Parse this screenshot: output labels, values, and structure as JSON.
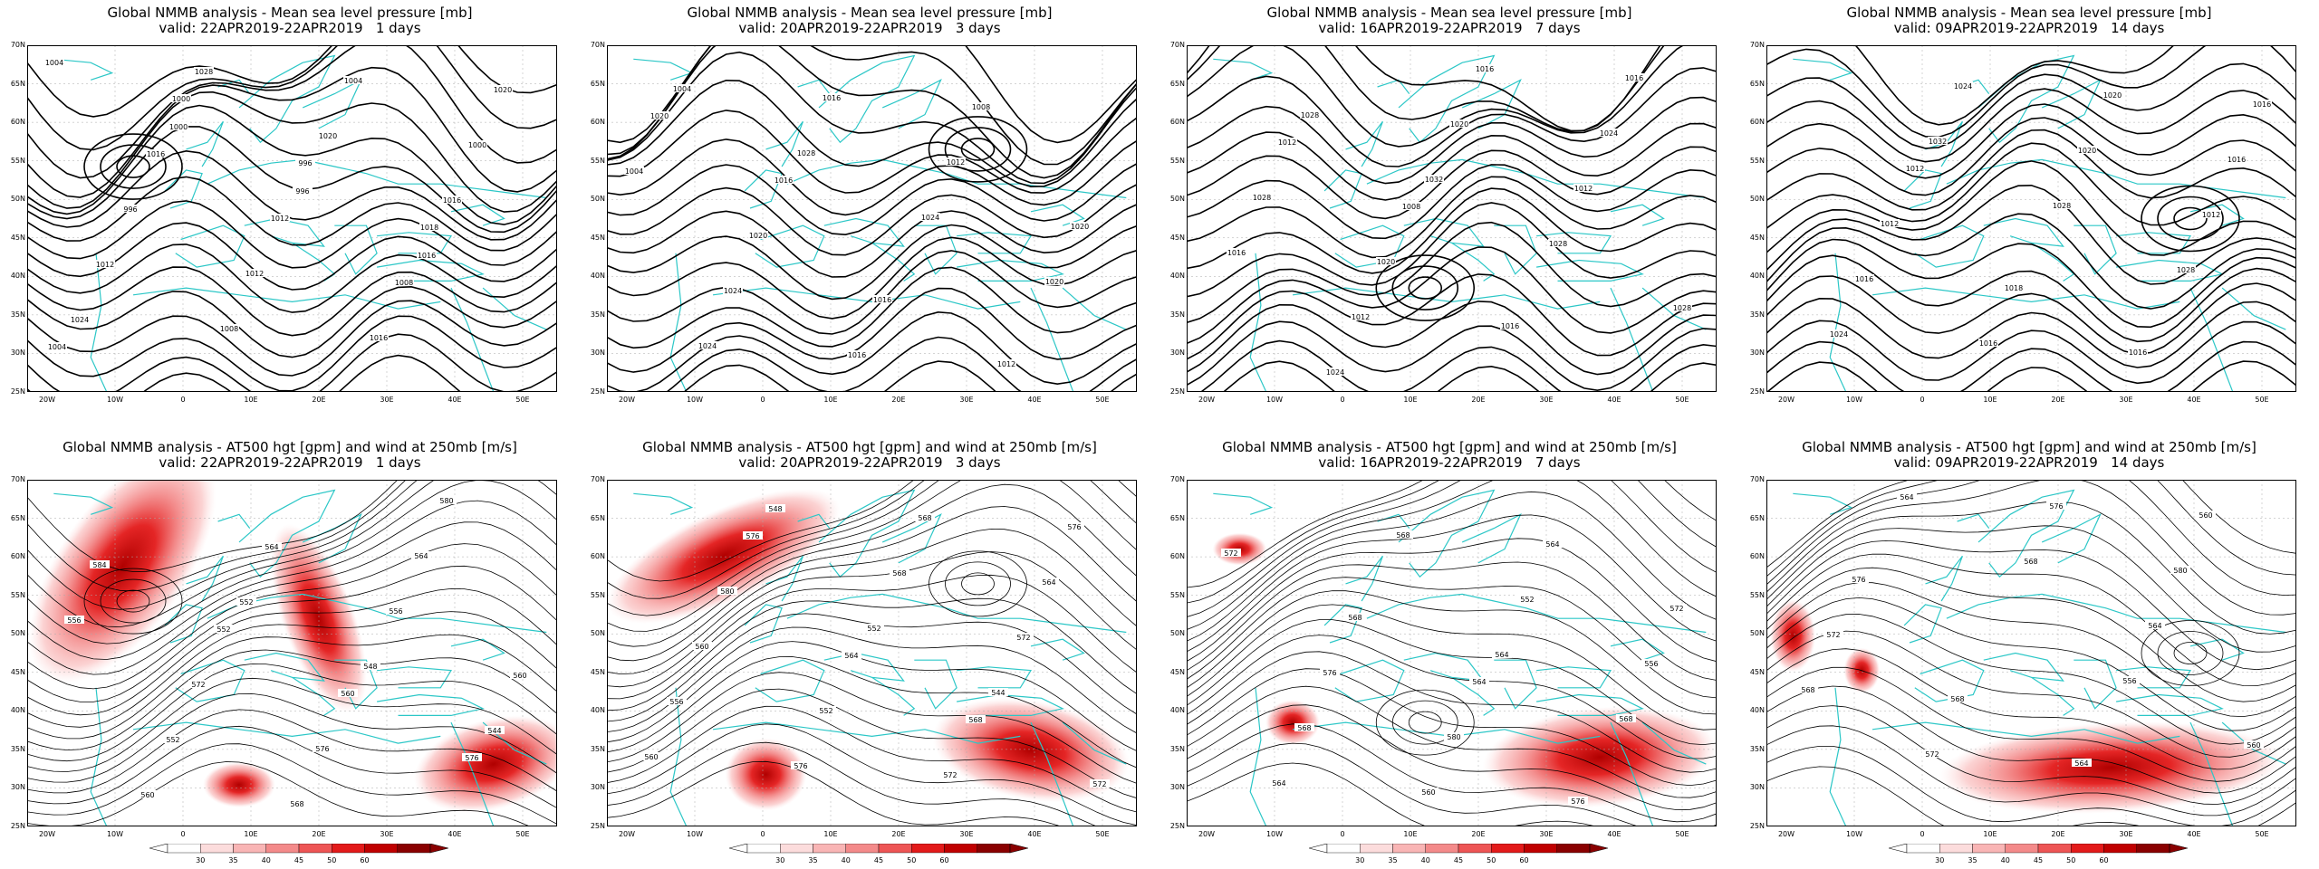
{
  "panels": [
    {
      "row": 0,
      "title": "Global NMMB analysis - Mean sea level pressure [mb]",
      "valid": "valid: 22APR2019-22APR2019   1 days",
      "labels": [
        "1004",
        "1000",
        "996",
        "1016",
        "1024",
        "1028",
        "1020",
        "1016",
        "1012",
        "1008",
        "1004",
        "1000",
        "996",
        "1012",
        "1016",
        "1020",
        "1016",
        "1012",
        "1008",
        "1004",
        "1000",
        "996",
        "1018"
      ]
    },
    {
      "row": 0,
      "title": "Global NMMB analysis - Mean sea level pressure [mb]",
      "valid": "valid: 20APR2019-22APR2019   3 days",
      "labels": [
        "1004",
        "1028",
        "1024",
        "1020",
        "1024",
        "1016",
        "1012",
        "1020",
        "1024",
        "1016",
        "1008",
        "1004",
        "1020",
        "1016",
        "1012",
        "1020",
        "1016"
      ]
    },
    {
      "row": 0,
      "title": "Global NMMB analysis - Mean sea level pressure [mb]",
      "valid": "valid: 16APR2019-22APR2019   7 days",
      "labels": [
        "1028",
        "1032",
        "1028",
        "1028",
        "1024",
        "1020",
        "1012",
        "1016",
        "1012",
        "1016",
        "1024",
        "1028",
        "1020",
        "1016",
        "1016",
        "1012",
        "1008"
      ]
    },
    {
      "row": 0,
      "title": "Global NMMB analysis - Mean sea level pressure [mb]",
      "valid": "valid: 09APR2019-22APR2019   14 days",
      "labels": [
        "1032",
        "1028",
        "1028",
        "1024",
        "1024",
        "1020",
        "1012",
        "1016",
        "1016",
        "1020",
        "1016",
        "1012",
        "1018",
        "1016",
        "1016",
        "1012"
      ]
    },
    {
      "row": 1,
      "title": "Global NMMB analysis - AT500 hgt [gpm] and wind at 250mb [m/s]",
      "valid": "valid: 22APR2019-22APR2019   1 days",
      "labels": [
        "552",
        "548",
        "544",
        "560",
        "564",
        "556",
        "560",
        "552",
        "568",
        "564",
        "556",
        "572",
        "576",
        "580",
        "584",
        "552",
        "560",
        "576"
      ]
    },
    {
      "row": 1,
      "title": "Global NMMB analysis - AT500 hgt [gpm] and wind at 250mb [m/s]",
      "valid": "valid: 20APR2019-22APR2019   3 days",
      "labels": [
        "552",
        "544",
        "560",
        "548",
        "568",
        "572",
        "556",
        "576",
        "568",
        "564",
        "560",
        "552",
        "572",
        "576",
        "580",
        "564",
        "568",
        "572",
        "576"
      ]
    },
    {
      "row": 1,
      "title": "Global NMMB analysis - AT500 hgt [gpm] and wind at 250mb [m/s]",
      "valid": "valid: 16APR2019-22APR2019   7 days",
      "labels": [
        "564",
        "568",
        "564",
        "568",
        "552",
        "556",
        "568",
        "560",
        "564",
        "572",
        "576",
        "580",
        "576",
        "572",
        "568",
        "564"
      ]
    },
    {
      "row": 1,
      "title": "Global NMMB analysis - AT500 hgt [gpm] and wind at 250mb [m/s]",
      "valid": "valid: 09APR2019-22APR2019   14 days",
      "labels": [
        "556",
        "560",
        "564",
        "568",
        "564",
        "568",
        "572",
        "576",
        "580",
        "572",
        "568",
        "564",
        "560",
        "576"
      ]
    }
  ],
  "lat_ticks": [
    "70N",
    "65N",
    "60N",
    "55N",
    "50N",
    "45N",
    "40N",
    "35N",
    "30N",
    "25N"
  ],
  "lon_ticks": [
    "20W",
    "10W",
    "0",
    "10E",
    "20E",
    "30E",
    "40E",
    "50E"
  ],
  "colorbar": {
    "ticks": [
      "30",
      "35",
      "40",
      "45",
      "50",
      "60"
    ],
    "colors": [
      "#ffffff",
      "#fcdcdc",
      "#f9b5b5",
      "#f48a8a",
      "#ee5555",
      "#e31a1a",
      "#c00000",
      "#8a0000"
    ]
  },
  "colors": {
    "coast": "#2cc7c7",
    "contour": "#000000",
    "grid": "#aaaaaa"
  }
}
